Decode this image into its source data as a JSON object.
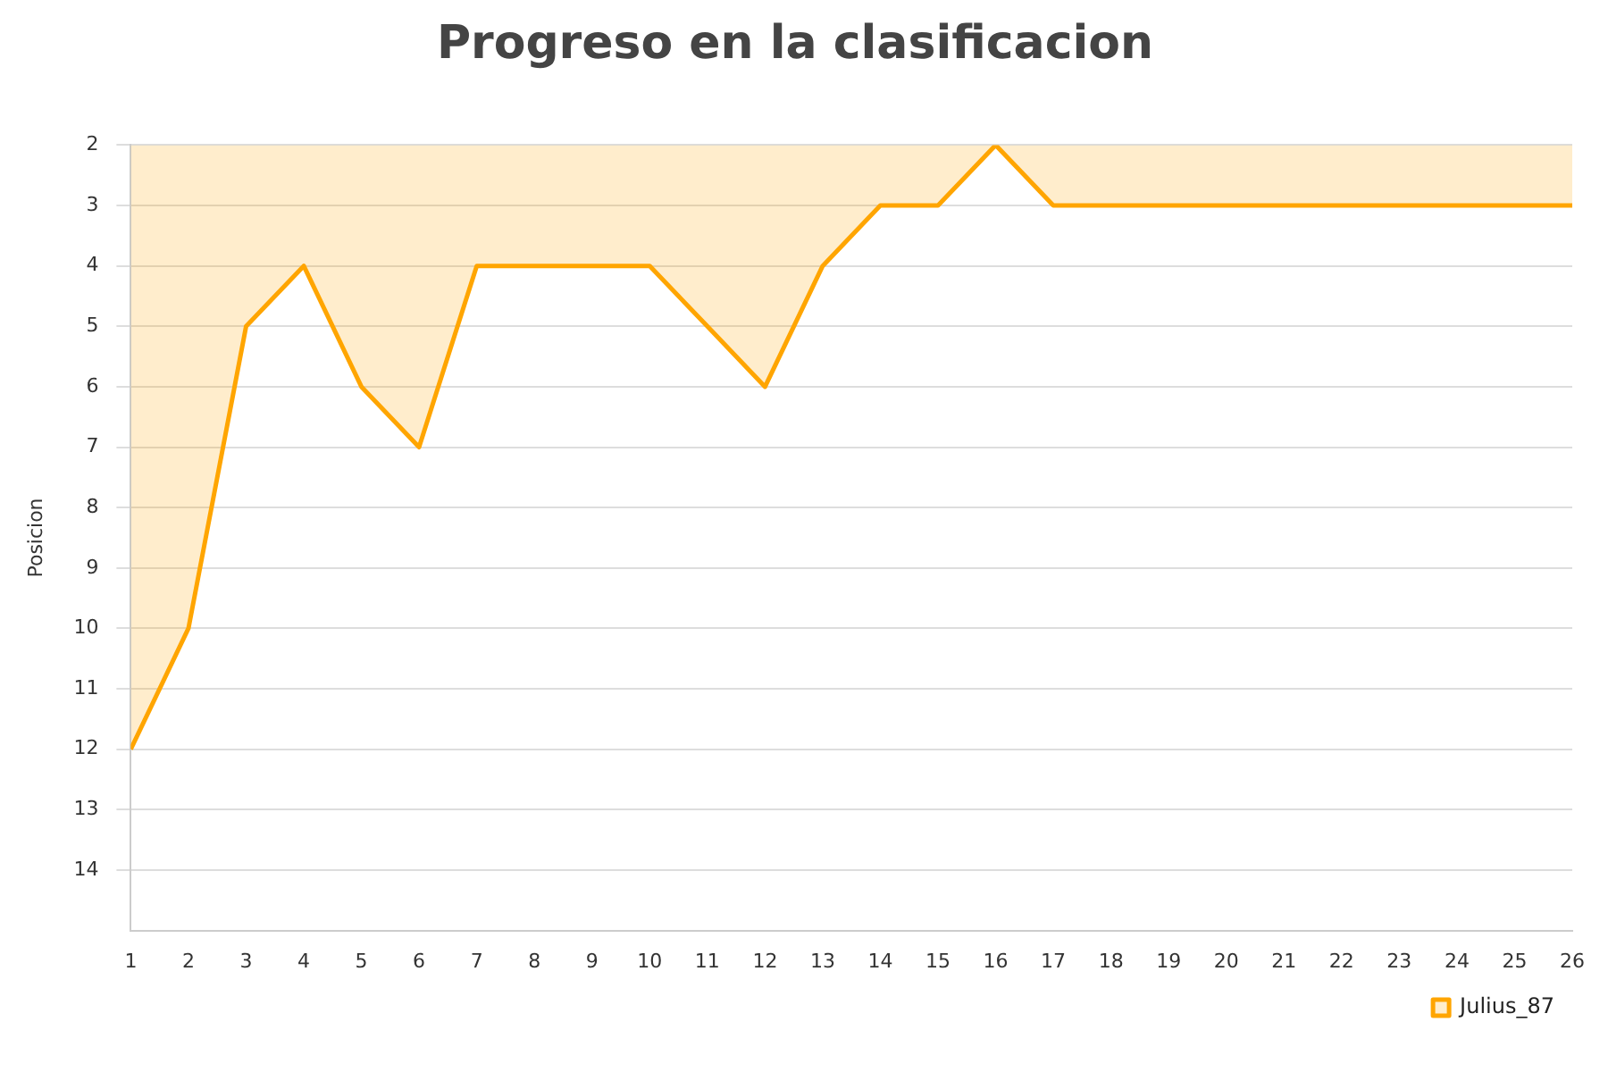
{
  "chart_data": {
    "type": "area",
    "title": "Progreso en la clasificacion",
    "ylabel": "Posicion",
    "x": [
      1,
      2,
      3,
      4,
      5,
      6,
      7,
      8,
      9,
      10,
      11,
      12,
      13,
      14,
      15,
      16,
      17,
      18,
      19,
      20,
      21,
      22,
      23,
      24,
      25,
      26
    ],
    "series": [
      {
        "name": "Julius_87",
        "color": "#ffa500",
        "values": [
          12,
          10,
          5,
          4,
          6,
          7,
          4,
          4,
          4,
          4,
          5,
          6,
          4,
          3,
          3,
          2,
          3,
          3,
          3,
          3,
          3,
          3,
          3,
          3,
          3,
          3
        ]
      }
    ],
    "xlim": [
      1,
      26
    ],
    "xticks": [
      1,
      2,
      3,
      4,
      5,
      6,
      7,
      8,
      9,
      10,
      11,
      12,
      13,
      14,
      15,
      16,
      17,
      18,
      19,
      20,
      21,
      22,
      23,
      24,
      25,
      26
    ],
    "ylim": [
      15,
      2
    ],
    "yticks": [
      2,
      3,
      4,
      5,
      6,
      7,
      8,
      9,
      10,
      11,
      12,
      13,
      14
    ],
    "grid": "y",
    "legend": "bottom right",
    "marker": "none",
    "line_style": "solid"
  }
}
